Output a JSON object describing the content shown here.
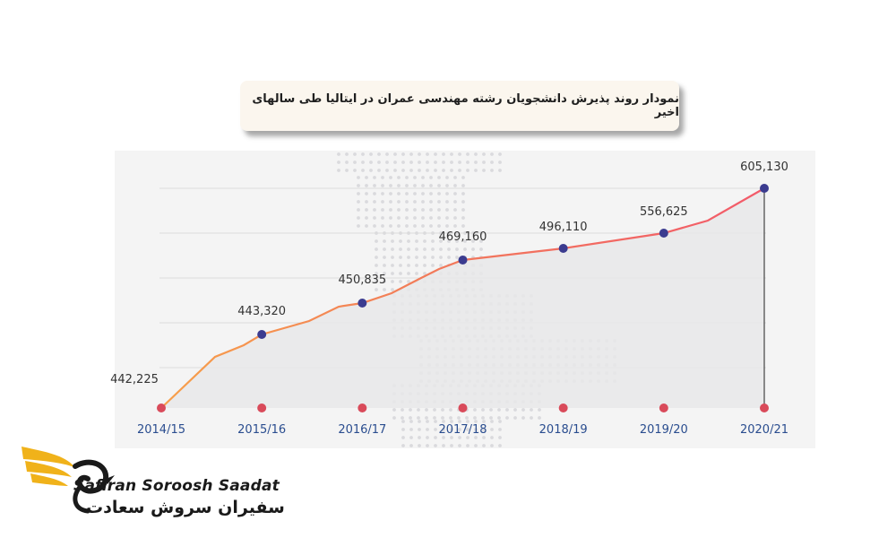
{
  "header": {
    "title": "نمودار روند پذیرش دانشجویان رشته مهندسی عمران در ایتالیا طی سالهای اخیر"
  },
  "brand": {
    "name_en": "Safiran Soroosh Saadat",
    "name_fa": "سفیران سروش سعادت"
  },
  "colors": {
    "line": "#f25a6a",
    "line_start": "#f7a04a",
    "marker": "#3b3b8f",
    "axis_dot": "#d94a5a",
    "tick_text": "#2a4d8f",
    "area": "#e7e7e9",
    "logo_gold": "#f0b21a"
  },
  "chart_data": {
    "type": "line",
    "title": "نمودار روند پذیرش دانشجویان رشته مهندسی عمران در ایتالیا طی سالهای اخیر",
    "categories": [
      "2014/15",
      "2015/16",
      "2016/17",
      "2017/18",
      "2018/19",
      "2019/20",
      "2020/21"
    ],
    "values": [
      442225,
      443320,
      450835,
      469160,
      496110,
      556625,
      605130
    ],
    "data_labels": [
      "442,225",
      "443,320",
      "450,835",
      "469,160",
      "496,110",
      "556,625",
      "605,130"
    ],
    "xlabel": "",
    "ylabel": "",
    "grid": true,
    "legend": "none"
  }
}
